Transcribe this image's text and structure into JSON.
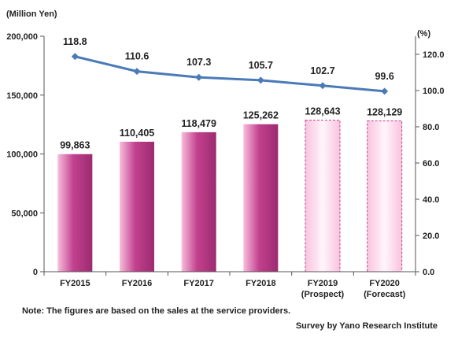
{
  "chart_data": {
    "type": "bar",
    "categories": [
      [
        "FY2015"
      ],
      [
        "FY2016"
      ],
      [
        "FY2017"
      ],
      [
        "FY2018"
      ],
      [
        "FY2019",
        "(Prospect)"
      ],
      [
        "FY2020",
        "(Forecast)"
      ]
    ],
    "series": [
      {
        "kind": "bar",
        "axis": "left",
        "values": [
          99863,
          110405,
          118479,
          125262,
          128643,
          128129
        ],
        "value_labels": [
          "99,863",
          "110,405",
          "118,479",
          "125,262",
          "128,643",
          "128,129"
        ],
        "colors": [
          "#c2418e",
          "#c2418e",
          "#c2418e",
          "#c2418e",
          "#f7c8e0",
          "#f7c8e0"
        ],
        "projected_from_index": 4
      },
      {
        "kind": "line",
        "axis": "right",
        "values": [
          118.8,
          110.6,
          107.3,
          105.7,
          102.7,
          99.6
        ],
        "value_labels": [
          "118.8",
          "110.6",
          "107.3",
          "105.7",
          "102.7",
          "99.6"
        ],
        "color": "#4a7ab8"
      }
    ],
    "left_axis": {
      "unit": "(Million Yen)",
      "range": [
        0,
        200000
      ],
      "ticks": [
        0,
        50000,
        100000,
        150000,
        200000
      ],
      "tick_labels": [
        "0",
        "50,000",
        "100,000",
        "150,000",
        "200,000"
      ]
    },
    "right_axis": {
      "unit": "(%)",
      "range": [
        0,
        130
      ],
      "ticks": [
        0,
        20,
        40,
        60,
        80,
        100,
        120
      ],
      "tick_labels": [
        "0.0",
        "20.0",
        "40.0",
        "60.0",
        "80.0",
        "100.0",
        "120.0"
      ]
    },
    "grid": false
  },
  "footer": {
    "note": "Note:  The figures are based on the sales at the service providers.",
    "credit": "Survey by Yano Research Institute"
  }
}
